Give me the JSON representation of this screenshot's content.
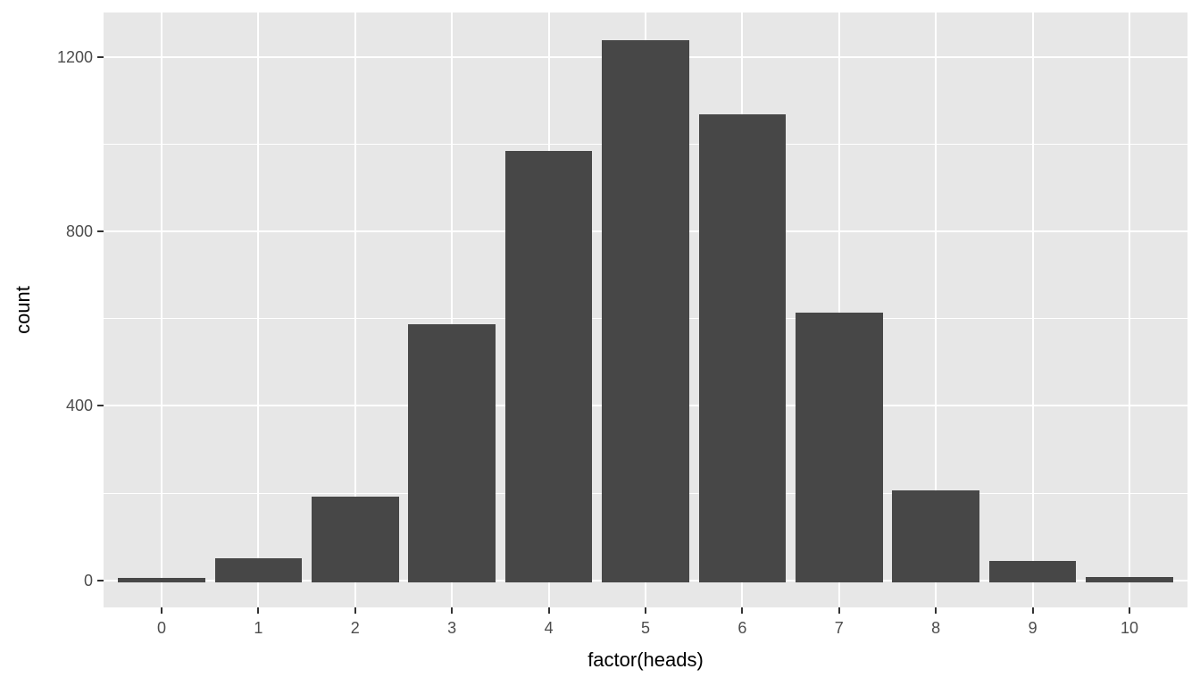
{
  "figure": {
    "background": "#ffffff",
    "panel_background": "#E7E7E7",
    "grid_color": "#ffffff",
    "bar_color": "#474747",
    "tick_mark_color": "#333333",
    "axis_text_color": "#4D4D4D",
    "axis_title_color": "#000000"
  },
  "chart_data": {
    "type": "bar",
    "title": "",
    "xlabel": "factor(heads)",
    "ylabel": "count",
    "categories": [
      "0",
      "1",
      "2",
      "3",
      "4",
      "5",
      "6",
      "7",
      "8",
      "9",
      "10"
    ],
    "values": [
      5,
      51,
      193,
      587,
      985,
      1238,
      1068,
      614,
      207,
      45,
      8
    ],
    "y_major_ticks": [
      0,
      400,
      800,
      1200
    ],
    "y_minor_ticks": [
      200,
      600,
      1000
    ],
    "ylim": [
      -62,
      1302
    ],
    "bar_width_fraction": 0.9,
    "x_expansion": 0.6,
    "grid": true,
    "legend_position": "none",
    "style": "ggplot2-theme-grey"
  }
}
